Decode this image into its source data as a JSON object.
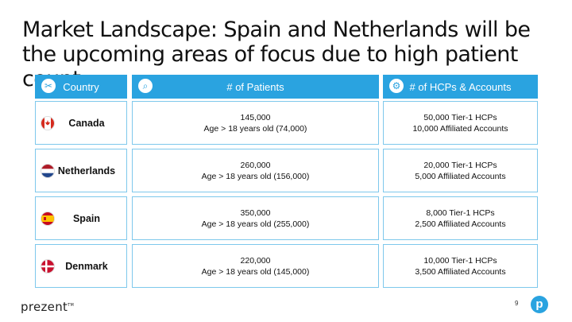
{
  "title": "Market Landscape: Spain and Netherlands will be the upcoming areas of focus due to high patient count",
  "headers": {
    "country": {
      "label": "Country",
      "icon": "stethoscope-icon"
    },
    "patients": {
      "label": "# of Patients",
      "icon": "search-icon"
    },
    "hcps": {
      "label": "# of HCPs & Accounts",
      "icon": "gear-icon"
    }
  },
  "rows": [
    {
      "country": "Canada",
      "flag": "canada-flag",
      "patients_line1": "145,000",
      "patients_line2": "Age > 18 years old (74,000)",
      "hcps_line1": "50,000 Tier-1 HCPs",
      "hcps_line2": "10,000 Affiliated Accounts"
    },
    {
      "country": "Netherlands",
      "flag": "netherlands-flag",
      "patients_line1": "260,000",
      "patients_line2": "Age > 18 years old (156,000)",
      "hcps_line1": "20,000 Tier-1 HCPs",
      "hcps_line2": "5,000 Affiliated Accounts"
    },
    {
      "country": "Spain",
      "flag": "spain-flag",
      "patients_line1": "350,000",
      "patients_line2": "Age > 18 years old (255,000)",
      "hcps_line1": "8,000 Tier-1 HCPs",
      "hcps_line2": "2,500 Affiliated Accounts"
    },
    {
      "country": "Denmark",
      "flag": "denmark-flag",
      "patients_line1": "220,000",
      "patients_line2": "Age > 18 years old (145,000)",
      "hcps_line1": "10,000 Tier-1 HCPs",
      "hcps_line2": "3,500 Affiliated Accounts"
    }
  ],
  "footer": {
    "brand": "prezent",
    "trademark": "TM",
    "page_number": "9",
    "logo_letter": "p"
  },
  "colors": {
    "accent": "#2aa3e0",
    "border": "#7ec8ec"
  }
}
